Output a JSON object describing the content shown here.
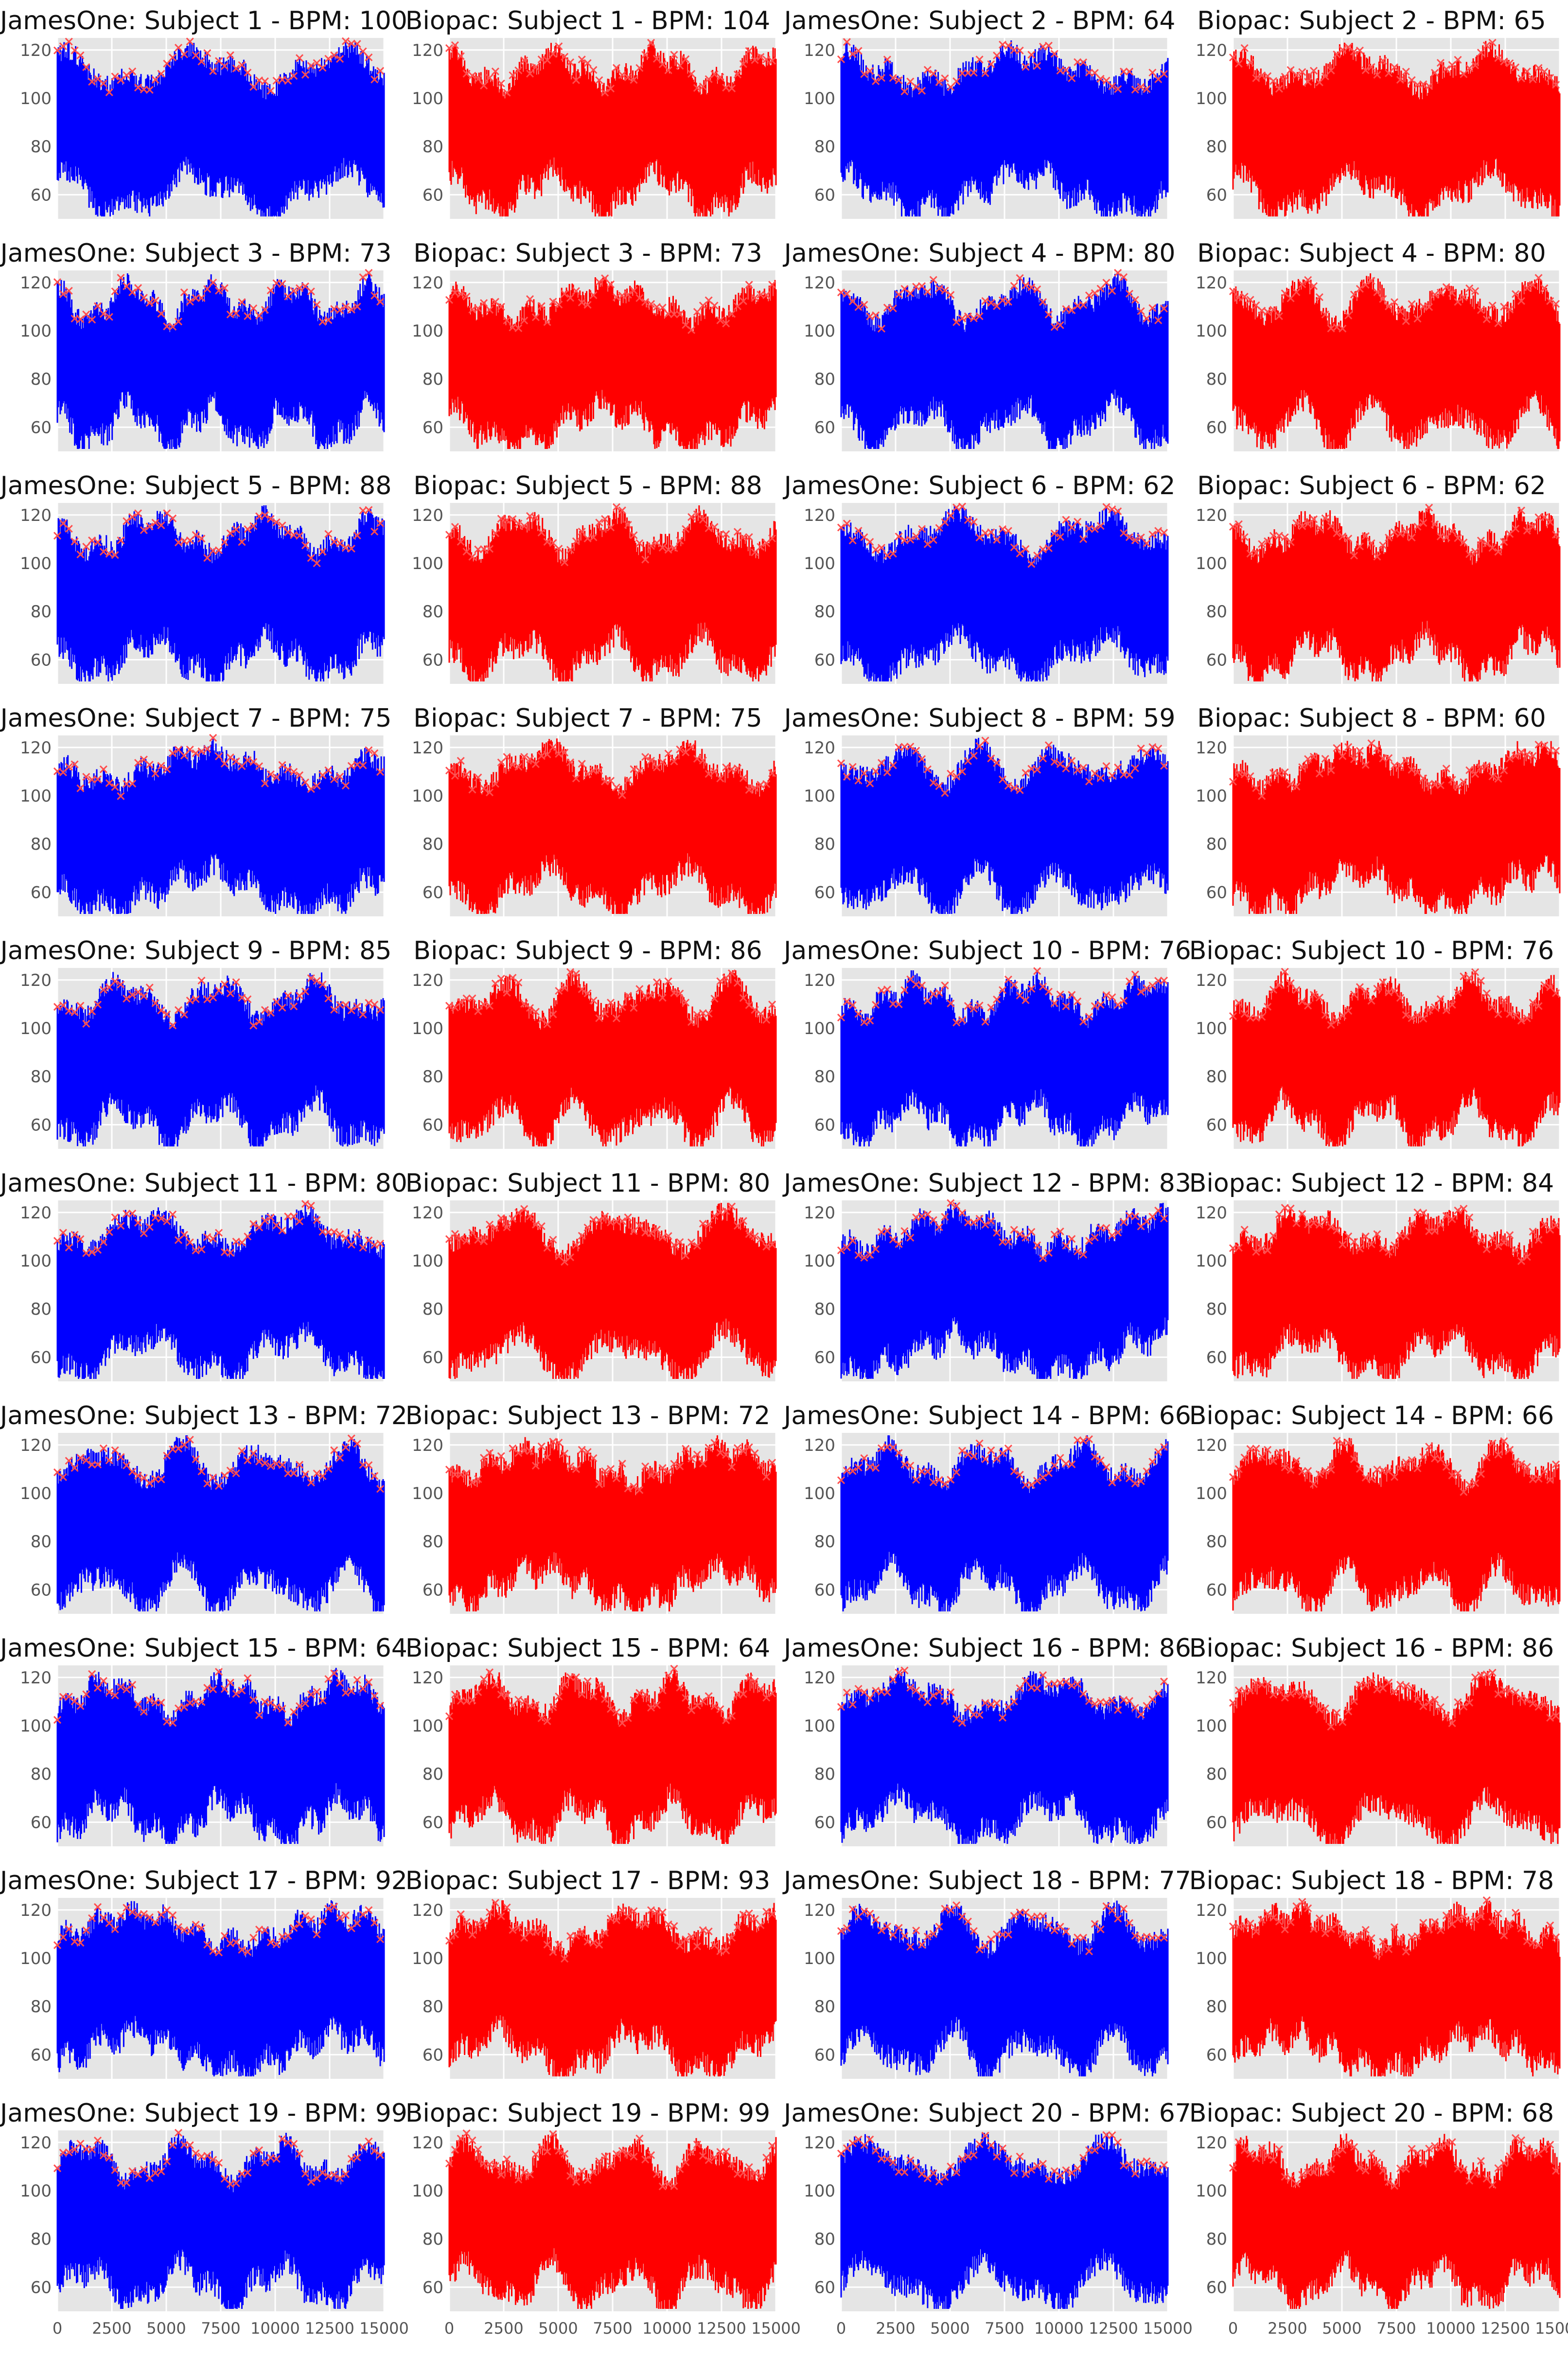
{
  "colors": {
    "jamesone_signal": "#0000ff",
    "biopac_signal": "#ff0000",
    "peak_marker": "#ff4d4d",
    "plot_background": "#e5e5e5",
    "gridline": "#ffffff",
    "tick_text": "#555555"
  },
  "chart_data": {
    "type": "line",
    "layout": "11 rows x 4 columns of subplots",
    "style": "ggplot (grey background, white grid)",
    "marker": "x (detected peaks)",
    "ylim": [
      50,
      125
    ],
    "xlim": [
      0,
      15000
    ],
    "yticks": [
      60,
      80,
      100,
      120
    ],
    "xticks": [
      0,
      2500,
      5000,
      7500,
      10000,
      12500,
      15000
    ],
    "xtick_labels_visible_on_bottom_row_only": true,
    "panels": [
      {
        "device": "JamesOne",
        "subject": 1,
        "bpm": 100,
        "title": "JamesOne: Subject 1 - BPM: 100"
      },
      {
        "device": "Biopac",
        "subject": 1,
        "bpm": 104,
        "title": "Biopac: Subject 1 - BPM: 104"
      },
      {
        "device": "JamesOne",
        "subject": 2,
        "bpm": 64,
        "title": "JamesOne: Subject 2 - BPM: 64"
      },
      {
        "device": "Biopac",
        "subject": 2,
        "bpm": 65,
        "title": "Biopac: Subject 2 - BPM: 65"
      },
      {
        "device": "JamesOne",
        "subject": 3,
        "bpm": 73,
        "title": "JamesOne: Subject 3 - BPM: 73"
      },
      {
        "device": "Biopac",
        "subject": 3,
        "bpm": 73,
        "title": "Biopac: Subject 3 - BPM: 73"
      },
      {
        "device": "JamesOne",
        "subject": 4,
        "bpm": 80,
        "title": "JamesOne: Subject 4 - BPM: 80"
      },
      {
        "device": "Biopac",
        "subject": 4,
        "bpm": 80,
        "title": "Biopac: Subject 4 - BPM: 80"
      },
      {
        "device": "JamesOne",
        "subject": 5,
        "bpm": 88,
        "title": "JamesOne: Subject 5 - BPM: 88"
      },
      {
        "device": "Biopac",
        "subject": 5,
        "bpm": 88,
        "title": "Biopac: Subject 5 - BPM: 88"
      },
      {
        "device": "JamesOne",
        "subject": 6,
        "bpm": 62,
        "title": "JamesOne: Subject 6 - BPM: 62"
      },
      {
        "device": "Biopac",
        "subject": 6,
        "bpm": 62,
        "title": "Biopac: Subject 6 - BPM: 62"
      },
      {
        "device": "JamesOne",
        "subject": 7,
        "bpm": 75,
        "title": "JamesOne: Subject 7 - BPM: 75"
      },
      {
        "device": "Biopac",
        "subject": 7,
        "bpm": 75,
        "title": "Biopac: Subject 7 - BPM: 75"
      },
      {
        "device": "JamesOne",
        "subject": 8,
        "bpm": 59,
        "title": "JamesOne: Subject 8 - BPM: 59"
      },
      {
        "device": "Biopac",
        "subject": 8,
        "bpm": 60,
        "title": "Biopac: Subject 8 - BPM: 60"
      },
      {
        "device": "JamesOne",
        "subject": 9,
        "bpm": 85,
        "title": "JamesOne: Subject 9 - BPM: 85"
      },
      {
        "device": "Biopac",
        "subject": 9,
        "bpm": 86,
        "title": "Biopac: Subject 9 - BPM: 86"
      },
      {
        "device": "JamesOne",
        "subject": 10,
        "bpm": 76,
        "title": "JamesOne: Subject 10 - BPM: 76"
      },
      {
        "device": "Biopac",
        "subject": 10,
        "bpm": 76,
        "title": "Biopac: Subject 10 - BPM: 76"
      },
      {
        "device": "JamesOne",
        "subject": 11,
        "bpm": 80,
        "title": "JamesOne: Subject 11 - BPM: 80"
      },
      {
        "device": "Biopac",
        "subject": 11,
        "bpm": 80,
        "title": "Biopac: Subject 11 - BPM: 80"
      },
      {
        "device": "JamesOne",
        "subject": 12,
        "bpm": 83,
        "title": "JamesOne: Subject 12 - BPM: 83"
      },
      {
        "device": "Biopac",
        "subject": 12,
        "bpm": 84,
        "title": "Biopac: Subject 12 - BPM: 84"
      },
      {
        "device": "JamesOne",
        "subject": 13,
        "bpm": 72,
        "title": "JamesOne: Subject 13 - BPM: 72"
      },
      {
        "device": "Biopac",
        "subject": 13,
        "bpm": 72,
        "title": "Biopac: Subject 13 - BPM: 72"
      },
      {
        "device": "JamesOne",
        "subject": 14,
        "bpm": 66,
        "title": "JamesOne: Subject 14 - BPM: 66"
      },
      {
        "device": "Biopac",
        "subject": 14,
        "bpm": 66,
        "title": "Biopac: Subject 14 - BPM: 66"
      },
      {
        "device": "JamesOne",
        "subject": 15,
        "bpm": 64,
        "title": "JamesOne: Subject 15 - BPM: 64"
      },
      {
        "device": "Biopac",
        "subject": 15,
        "bpm": 64,
        "title": "Biopac: Subject 15 - BPM: 64"
      },
      {
        "device": "JamesOne",
        "subject": 16,
        "bpm": 86,
        "title": "JamesOne: Subject 16 - BPM: 86"
      },
      {
        "device": "Biopac",
        "subject": 16,
        "bpm": 86,
        "title": "Biopac: Subject 16 - BPM: 86"
      },
      {
        "device": "JamesOne",
        "subject": 17,
        "bpm": 92,
        "title": "JamesOne: Subject 17 - BPM: 92"
      },
      {
        "device": "Biopac",
        "subject": 17,
        "bpm": 93,
        "title": "Biopac: Subject 17 - BPM: 93"
      },
      {
        "device": "JamesOne",
        "subject": 18,
        "bpm": 77,
        "title": "JamesOne: Subject 18 - BPM: 77"
      },
      {
        "device": "Biopac",
        "subject": 18,
        "bpm": 78,
        "title": "Biopac: Subject 18 - BPM: 78"
      },
      {
        "device": "JamesOne",
        "subject": 19,
        "bpm": 99,
        "title": "JamesOne: Subject 19 - BPM: 99"
      },
      {
        "device": "Biopac",
        "subject": 19,
        "bpm": 99,
        "title": "Biopac: Subject 19 - BPM: 99"
      },
      {
        "device": "JamesOne",
        "subject": 20,
        "bpm": 67,
        "title": "JamesOne: Subject 20 - BPM: 67"
      },
      {
        "device": "Biopac",
        "subject": 20,
        "bpm": 68,
        "title": "Biopac: Subject 20 - BPM: 68"
      }
    ]
  }
}
